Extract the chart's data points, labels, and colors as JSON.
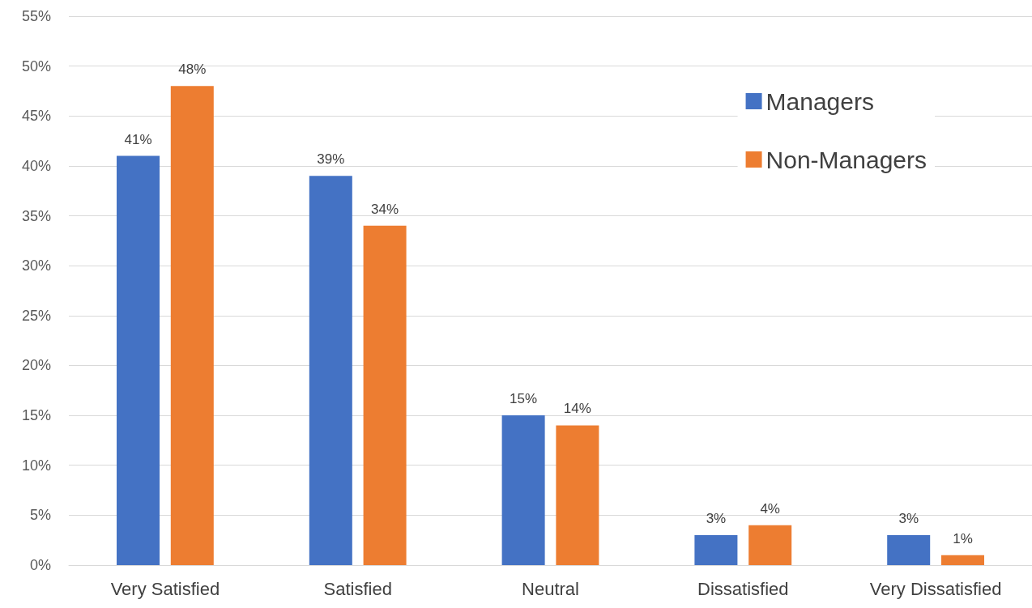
{
  "chart_data": {
    "type": "bar",
    "categories": [
      "Very Satisfied",
      "Satisfied",
      "Neutral",
      "Dissatisfied",
      "Very Dissatisfied"
    ],
    "series": [
      {
        "name": "Managers",
        "color": "#4472c4",
        "values": [
          41,
          39,
          15,
          3,
          3
        ],
        "value_labels": [
          "41%",
          "39%",
          "15%",
          "3%",
          "3%"
        ]
      },
      {
        "name": "Non-Managers",
        "color": "#ed7d31",
        "values": [
          48,
          34,
          14,
          4,
          1
        ],
        "value_labels": [
          "48%",
          "34%",
          "14%",
          "4%",
          "1%"
        ]
      }
    ],
    "ylim": [
      0,
      55
    ],
    "yticks": [
      {
        "value": 0,
        "label": "0%"
      },
      {
        "value": 5,
        "label": "5%"
      },
      {
        "value": 10,
        "label": "10%"
      },
      {
        "value": 15,
        "label": "15%"
      },
      {
        "value": 20,
        "label": "20%"
      },
      {
        "value": 25,
        "label": "25%"
      },
      {
        "value": 30,
        "label": "30%"
      },
      {
        "value": 35,
        "label": "35%"
      },
      {
        "value": 40,
        "label": "40%"
      },
      {
        "value": 45,
        "label": "45%"
      },
      {
        "value": 50,
        "label": "50%"
      },
      {
        "value": 55,
        "label": "55%"
      }
    ],
    "grid": "y",
    "legend": "top right"
  }
}
